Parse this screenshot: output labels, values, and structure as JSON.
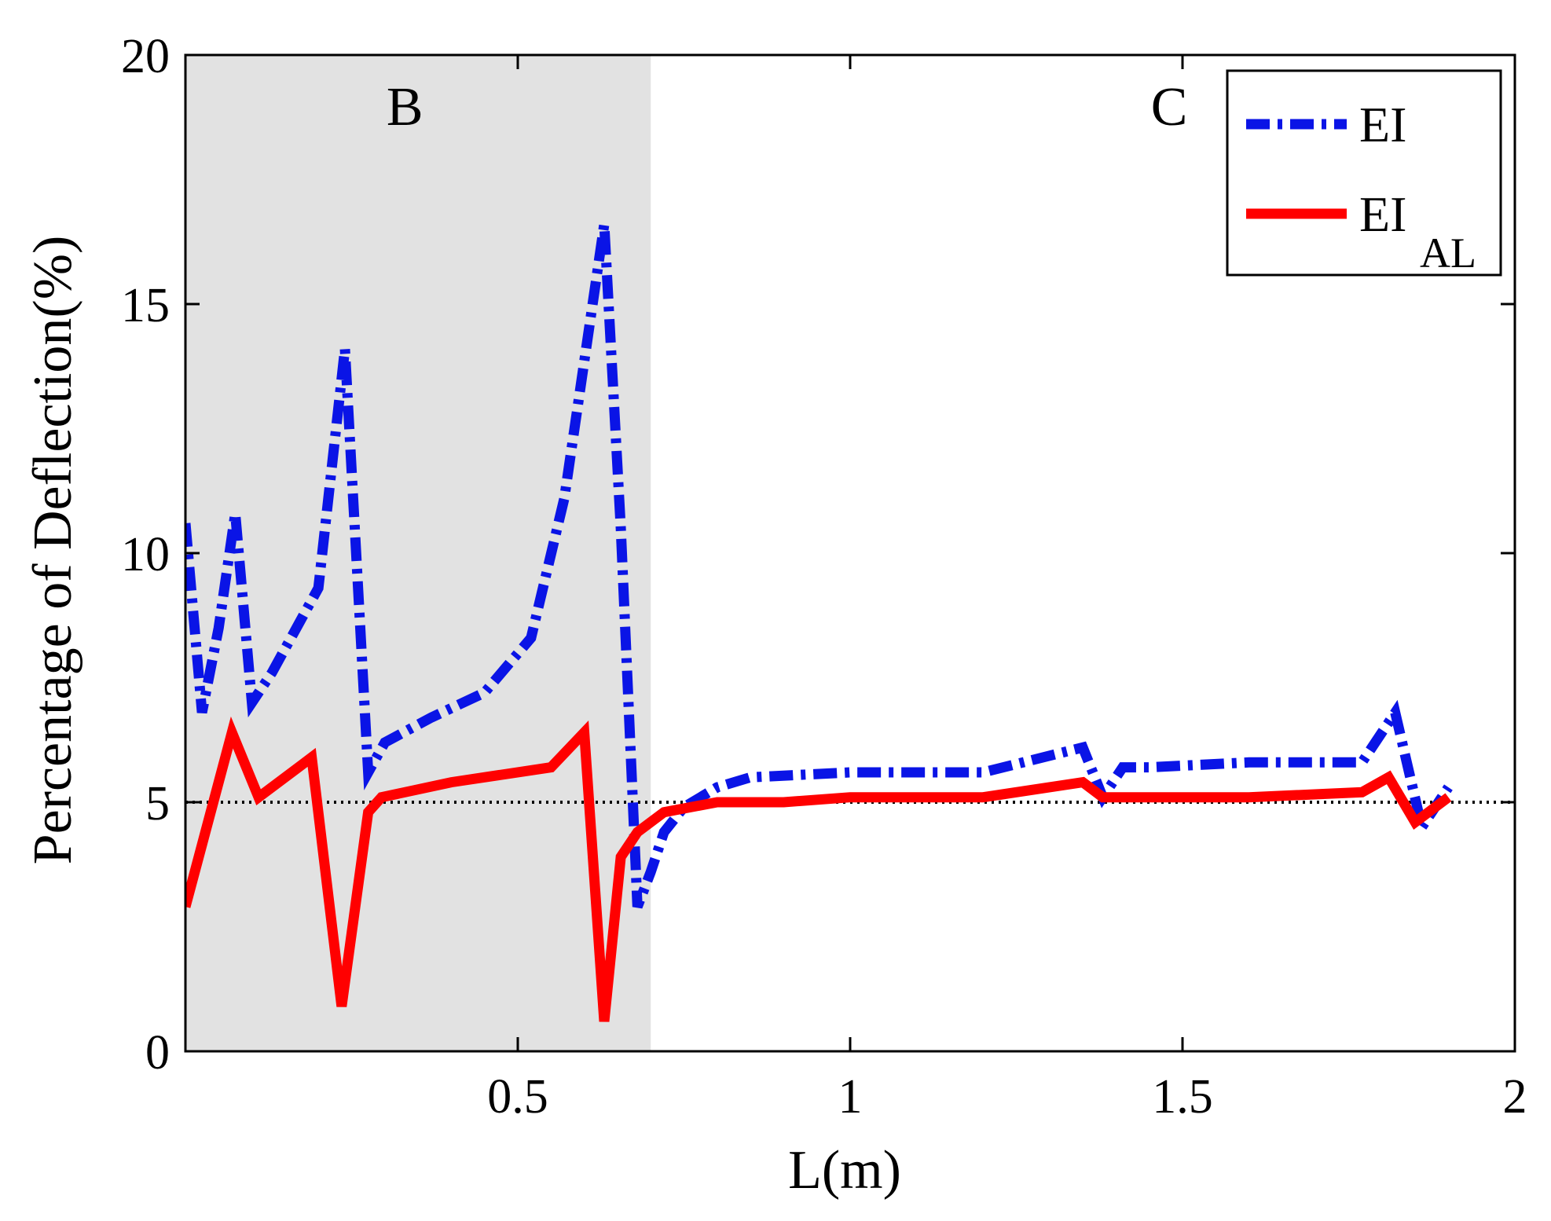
{
  "chart_data": {
    "type": "line",
    "xlabel": "L(m)",
    "ylabel": "Percentage of Deflection(%)",
    "xlim": [
      0.0,
      2.0
    ],
    "ylim": [
      0,
      20
    ],
    "xticks": [
      "0.5",
      "1",
      "1.5",
      "2"
    ],
    "xtick_values": [
      0.5,
      1,
      1.5,
      2
    ],
    "yticks": [
      "0",
      "5",
      "10",
      "15",
      "20"
    ],
    "ytick_values": [
      0,
      5,
      10,
      15,
      20
    ],
    "shaded_region": {
      "x_start": 0.0,
      "x_end": 0.7,
      "color": "#e2e2e2"
    },
    "region_labels": [
      {
        "text": "B",
        "x": 0.33,
        "y": 18.6
      },
      {
        "text": "C",
        "x": 1.48,
        "y": 18.6
      }
    ],
    "reference_line": {
      "y": 5,
      "style": "dotted",
      "color": "#000000"
    },
    "legend": {
      "placement": "top-right",
      "entries": [
        {
          "label": "EI",
          "sub": ""
        },
        {
          "label": "EI",
          "sub": "AL"
        }
      ]
    },
    "series": [
      {
        "name": "EI",
        "color": "#0a14e6",
        "style": "dash-dot",
        "x": [
          0.0,
          0.025,
          0.05,
          0.075,
          0.1,
          0.13,
          0.2,
          0.24,
          0.275,
          0.3,
          0.37,
          0.45,
          0.52,
          0.57,
          0.63,
          0.655,
          0.68,
          0.7,
          0.72,
          0.75,
          0.8,
          0.85,
          1.0,
          1.2,
          1.35,
          1.38,
          1.41,
          1.45,
          1.6,
          1.77,
          1.82,
          1.86,
          1.9
        ],
        "values": [
          10.6,
          6.8,
          8.5,
          10.8,
          7.0,
          7.6,
          9.3,
          14.1,
          5.6,
          6.2,
          6.7,
          7.2,
          8.3,
          11.1,
          16.6,
          10.5,
          2.9,
          3.6,
          4.4,
          4.9,
          5.3,
          5.5,
          5.6,
          5.6,
          6.1,
          5.1,
          5.7,
          5.7,
          5.8,
          5.8,
          6.8,
          4.5,
          5.3
        ]
      },
      {
        "name": "EI_AL",
        "color": "#ff0000",
        "style": "solid",
        "x": [
          0.0,
          0.07,
          0.11,
          0.19,
          0.235,
          0.275,
          0.295,
          0.4,
          0.55,
          0.6,
          0.63,
          0.655,
          0.68,
          0.72,
          0.8,
          0.9,
          1.0,
          1.2,
          1.35,
          1.38,
          1.41,
          1.45,
          1.6,
          1.77,
          1.81,
          1.85,
          1.9
        ],
        "values": [
          2.9,
          6.4,
          5.1,
          5.9,
          0.9,
          4.8,
          5.1,
          5.4,
          5.7,
          6.4,
          0.6,
          3.9,
          4.4,
          4.8,
          5.0,
          5.0,
          5.1,
          5.1,
          5.4,
          5.1,
          5.1,
          5.1,
          5.1,
          5.2,
          5.5,
          4.6,
          5.1
        ]
      }
    ]
  }
}
